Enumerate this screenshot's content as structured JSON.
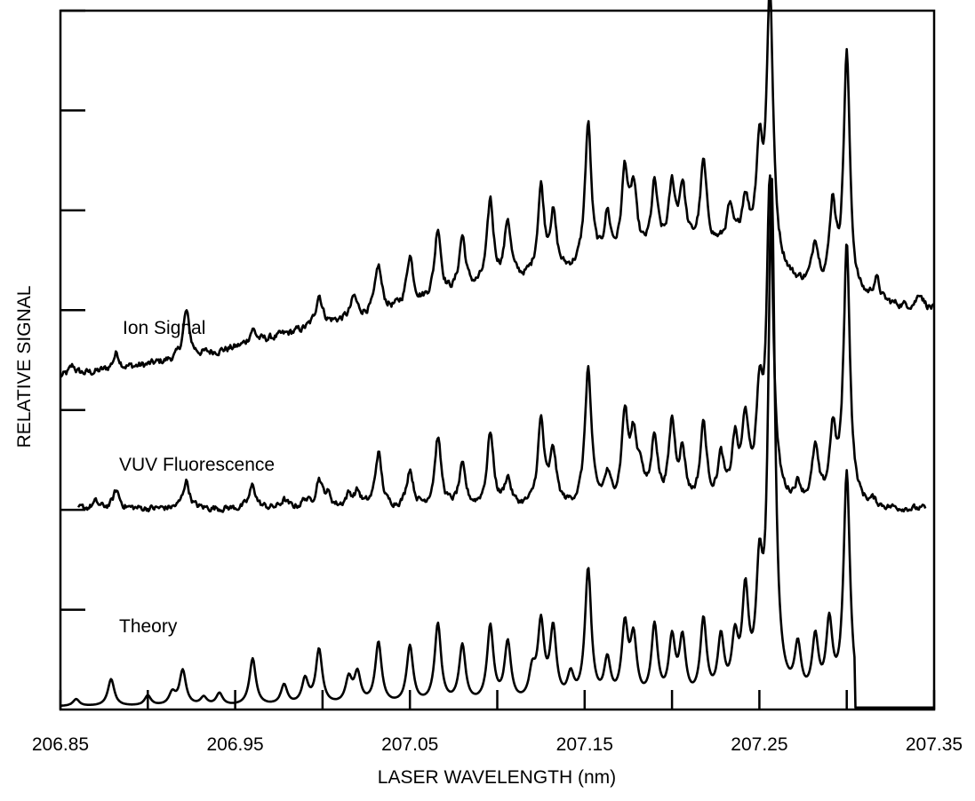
{
  "chart_data": {
    "type": "line",
    "title": "",
    "xlabel": "LASER WAVELENGTH (nm)",
    "ylabel": "RELATIVE SIGNAL",
    "xlim": [
      206.85,
      207.35
    ],
    "ylim": [
      0,
      7
    ],
    "grid": false,
    "legend": "none",
    "x_ticks": [
      206.85,
      206.9,
      206.95,
      207.0,
      207.05,
      207.1,
      207.15,
      207.2,
      207.25,
      207.3,
      207.35
    ],
    "x_tick_labels": [
      "206.85",
      "206.95",
      "207.05",
      "207.15",
      "207.25",
      "207.35"
    ],
    "y_ticks": [
      1,
      2,
      3,
      4,
      5,
      6,
      7
    ],
    "annotations": [
      {
        "text": "Ion Signal",
        "series": 0
      },
      {
        "text": "VUV Fluorescence",
        "series": 1
      },
      {
        "text": "Theory",
        "series": 2
      }
    ],
    "series": [
      {
        "name": "Ion Signal",
        "x_range": [
          206.85,
          207.35
        ],
        "baseline": [
          [
            206.85,
            3.33
          ],
          [
            206.9,
            3.45
          ],
          [
            206.95,
            3.62
          ],
          [
            207.0,
            3.85
          ],
          [
            207.05,
            4.03
          ],
          [
            207.1,
            4.24
          ],
          [
            207.15,
            4.38
          ],
          [
            207.2,
            4.58
          ],
          [
            207.24,
            4.62
          ],
          [
            207.27,
            4.25
          ],
          [
            207.3,
            4.08
          ],
          [
            207.35,
            4.0
          ]
        ],
        "peaks": [
          [
            206.857,
            0.09
          ],
          [
            206.882,
            0.16
          ],
          [
            206.922,
            0.46
          ],
          [
            206.96,
            0.14
          ],
          [
            206.998,
            0.31
          ],
          [
            207.018,
            0.2
          ],
          [
            207.032,
            0.46
          ],
          [
            207.05,
            0.5
          ],
          [
            207.066,
            0.7
          ],
          [
            207.08,
            0.55
          ],
          [
            207.096,
            0.84
          ],
          [
            207.106,
            0.6
          ],
          [
            207.125,
            0.88
          ],
          [
            207.132,
            0.58
          ],
          [
            207.152,
            1.44
          ],
          [
            207.163,
            0.46
          ],
          [
            207.173,
            0.85
          ],
          [
            207.178,
            0.64
          ],
          [
            207.19,
            0.67
          ],
          [
            207.2,
            0.6
          ],
          [
            207.206,
            0.6
          ],
          [
            207.218,
            0.84
          ],
          [
            207.233,
            0.35
          ],
          [
            207.242,
            0.45
          ],
          [
            207.25,
            1.0
          ],
          [
            207.256,
            2.7
          ],
          [
            207.282,
            0.45
          ],
          [
            207.292,
            0.85
          ],
          [
            207.3,
            2.43
          ],
          [
            207.317,
            0.22
          ],
          [
            207.342,
            0.15
          ]
        ],
        "noise": 0.035
      },
      {
        "name": "VUV Fluorescence",
        "x_range": [
          206.86,
          207.345
        ],
        "baseline": [
          [
            206.86,
            2.01
          ],
          [
            207.35,
            2.0
          ]
        ],
        "peaks": [
          [
            206.87,
            0.06
          ],
          [
            206.882,
            0.18
          ],
          [
            206.922,
            0.28
          ],
          [
            206.96,
            0.23
          ],
          [
            206.978,
            0.08
          ],
          [
            206.99,
            0.08
          ],
          [
            206.998,
            0.28
          ],
          [
            207.003,
            0.12
          ],
          [
            207.015,
            0.12
          ],
          [
            207.02,
            0.15
          ],
          [
            207.032,
            0.55
          ],
          [
            207.05,
            0.38
          ],
          [
            207.066,
            0.7
          ],
          [
            207.08,
            0.4
          ],
          [
            207.096,
            0.75
          ],
          [
            207.106,
            0.28
          ],
          [
            207.125,
            0.85
          ],
          [
            207.132,
            0.53
          ],
          [
            207.152,
            1.38
          ],
          [
            207.163,
            0.27
          ],
          [
            207.173,
            0.88
          ],
          [
            207.178,
            0.6
          ],
          [
            207.182,
            0.3
          ],
          [
            207.19,
            0.67
          ],
          [
            207.2,
            0.8
          ],
          [
            207.206,
            0.5
          ],
          [
            207.218,
            0.8
          ],
          [
            207.228,
            0.45
          ],
          [
            207.236,
            0.6
          ],
          [
            207.242,
            0.8
          ],
          [
            207.25,
            0.95
          ],
          [
            207.256,
            3.22
          ],
          [
            207.272,
            0.18
          ],
          [
            207.282,
            0.55
          ],
          [
            207.292,
            0.7
          ],
          [
            207.3,
            2.6
          ],
          [
            207.315,
            0.05
          ]
        ],
        "noise": 0.03
      },
      {
        "name": "Theory",
        "x_range": [
          206.85,
          207.35
        ],
        "baseline": [
          [
            206.85,
            0.03
          ],
          [
            207.35,
            0.03
          ]
        ],
        "peaks": [
          [
            206.859,
            0.07
          ],
          [
            206.879,
            0.27
          ],
          [
            206.9,
            0.1
          ],
          [
            206.914,
            0.12
          ],
          [
            206.92,
            0.35
          ],
          [
            206.932,
            0.08
          ],
          [
            206.941,
            0.12
          ],
          [
            206.96,
            0.47
          ],
          [
            206.978,
            0.2
          ],
          [
            206.99,
            0.25
          ],
          [
            206.998,
            0.55
          ],
          [
            207.015,
            0.25
          ],
          [
            207.02,
            0.3
          ],
          [
            207.032,
            0.62
          ],
          [
            207.05,
            0.58
          ],
          [
            207.066,
            0.8
          ],
          [
            207.08,
            0.58
          ],
          [
            207.096,
            0.77
          ],
          [
            207.106,
            0.6
          ],
          [
            207.12,
            0.28
          ],
          [
            207.125,
            0.77
          ],
          [
            207.132,
            0.72
          ],
          [
            207.142,
            0.25
          ],
          [
            207.152,
            1.33
          ],
          [
            207.163,
            0.4
          ],
          [
            207.173,
            0.73
          ],
          [
            207.178,
            0.6
          ],
          [
            207.19,
            0.75
          ],
          [
            207.2,
            0.6
          ],
          [
            207.206,
            0.6
          ],
          [
            207.218,
            0.8
          ],
          [
            207.228,
            0.6
          ],
          [
            207.236,
            0.55
          ],
          [
            207.242,
            1.0
          ],
          [
            207.25,
            1.1
          ],
          [
            207.257,
            5.18
          ],
          [
            207.272,
            0.5
          ],
          [
            207.282,
            0.6
          ],
          [
            207.29,
            0.75
          ],
          [
            207.3,
            2.3
          ]
        ],
        "step": {
          "x_start": 207.305,
          "level": 0.02
        },
        "noise": 0
      }
    ]
  }
}
